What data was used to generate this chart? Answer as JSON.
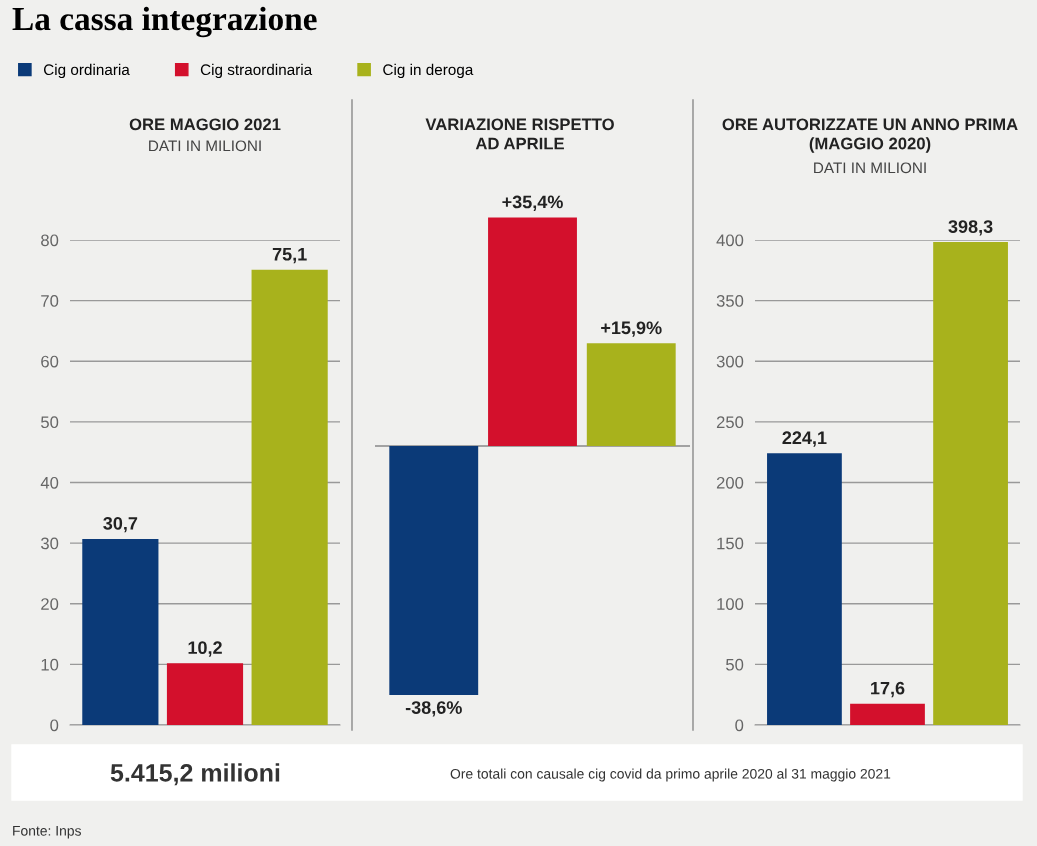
{
  "chart_data": [
    {
      "type": "other",
      "title": "La cassa integrazione"
    },
    {
      "type": "bar",
      "title": "ORE MAGGIO 2021",
      "subtitle": "DATI IN MILIONI",
      "categories": [
        null
      ],
      "series": [
        {
          "name": "Cig ordinaria",
          "color": "#0b3a78",
          "values": [
            30.7
          ],
          "value_labels": [
            "30,7"
          ]
        },
        {
          "name": "Cig straordinaria",
          "color": "#d3102c",
          "values": [
            10.2
          ],
          "value_labels": [
            "10,2"
          ]
        },
        {
          "name": "Cig in deroga",
          "color": "#a8b21c",
          "values": [
            75.1
          ],
          "value_labels": [
            "75,1"
          ]
        }
      ],
      "ylim": [
        0,
        80
      ],
      "yticks": [
        0,
        10,
        20,
        30,
        40,
        50,
        60,
        70,
        80
      ],
      "grid": "y",
      "legend": "top"
    },
    {
      "type": "bar",
      "title": "VARIAZIONE RISPETTO\nAD APRILE",
      "categories": [
        null
      ],
      "series": [
        {
          "color": "#0b3a78",
          "values": [
            -38.6
          ],
          "value_labels": [
            "-38,6%"
          ]
        },
        {
          "color": "#d3102c",
          "values": [
            35.4
          ],
          "value_labels": [
            "+35,4%"
          ]
        },
        {
          "color": "#a8b21c",
          "values": [
            15.9
          ],
          "value_labels": [
            "+15,9%"
          ]
        }
      ],
      "tick_labels": false
    },
    {
      "type": "bar",
      "title": "ORE AUTORIZZATE UN ANNO PRIMA\n(MAGGIO 2020)",
      "subtitle": "DATI IN MILIONI",
      "categories": [
        null
      ],
      "series": [
        {
          "color": "#0b3a78",
          "values": [
            224.1
          ],
          "value_labels": [
            "224,1"
          ]
        },
        {
          "color": "#d3102c",
          "values": [
            17.6
          ],
          "value_labels": [
            "17,6"
          ]
        },
        {
          "color": "#a8b21c",
          "values": [
            398.3
          ],
          "value_labels": [
            "398,3"
          ]
        }
      ],
      "ylim": [
        0,
        400
      ],
      "yticks": [
        0,
        50,
        100,
        150,
        200,
        250,
        300,
        350,
        400
      ],
      "grid": "y"
    },
    {
      "type": "other",
      "annotations": [
        "5.415,2 milioni",
        "Ore totali con causale cig covid da primo aprile 2020 al 31 maggio 2021",
        "Fonte: Inps"
      ]
    }
  ]
}
